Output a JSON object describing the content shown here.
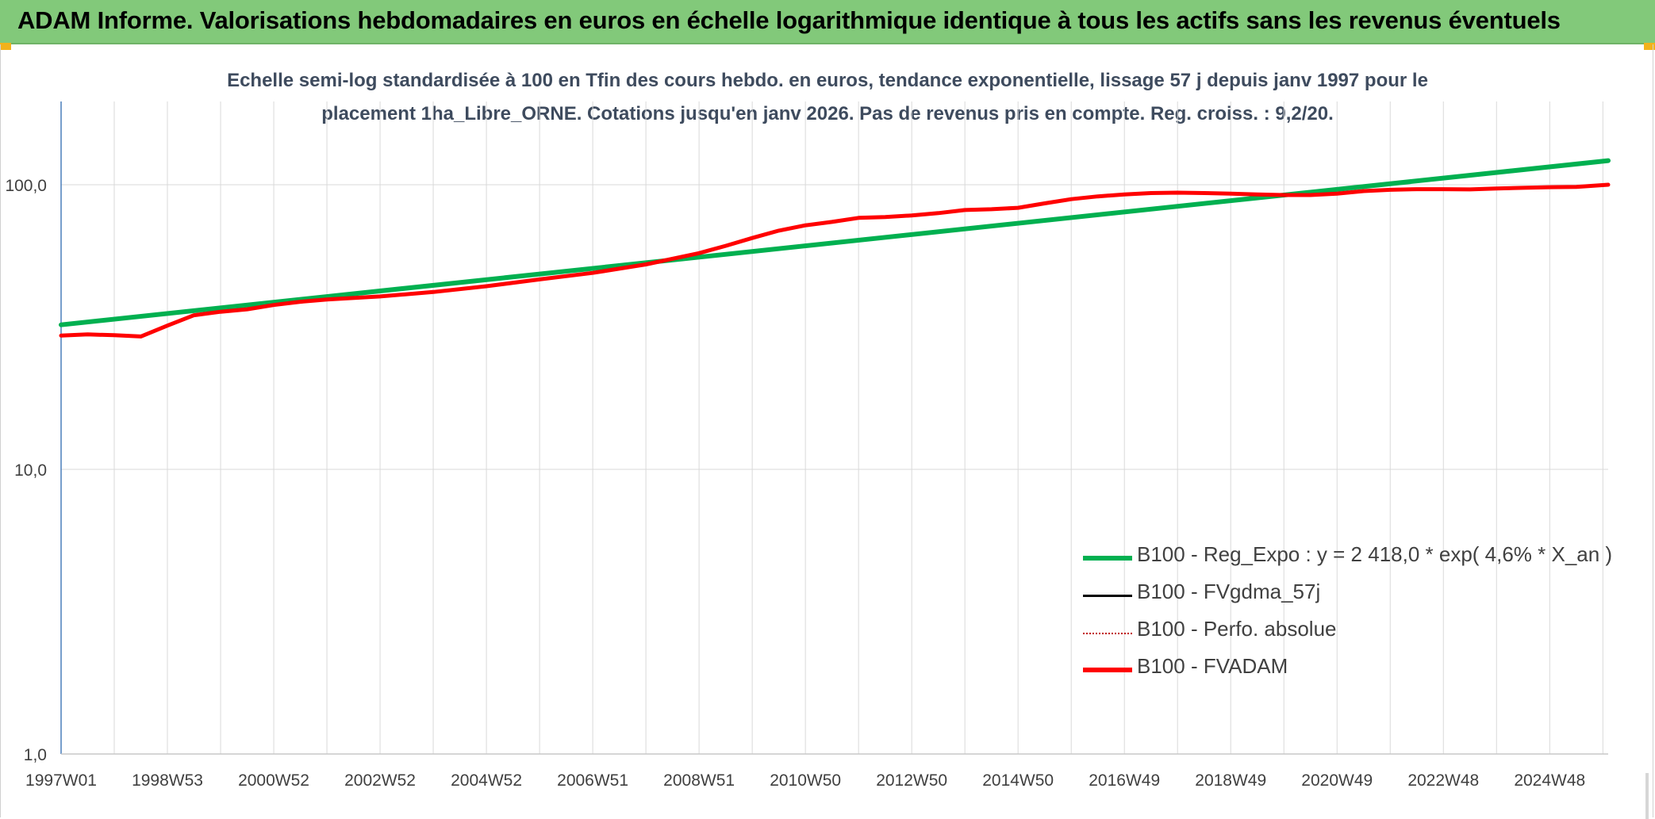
{
  "header": {
    "title": "ADAM Informe. Valorisations hebdomadaires en euros en échelle logarithmique identique à tous les actifs sans les revenus éventuels"
  },
  "chart_data": {
    "type": "line",
    "title_lines": [
      "Echelle semi-log standardisée à 100 en Tfin des cours hebdo. en euros, tendance exponentielle, lissage 57 j depuis janv 1997 pour le",
      "placement 1ha_Libre_ORNE. Cotations jusqu'en janv 2026. Pas de revenus pris en compte. Reg. croiss. : 9,2/20."
    ],
    "xlabel": "",
    "ylabel": "",
    "y_scale": "log",
    "ylim": [
      1,
      100
    ],
    "y_ticks": [
      1,
      10,
      100
    ],
    "y_tick_labels": [
      "1,0",
      "10,0",
      "100,0"
    ],
    "x_range": [
      1997.0,
      2026.1
    ],
    "x_ticks": [
      1997.0,
      1999.0,
      2001.0,
      2003.0,
      2005.0,
      2007.0,
      2009.0,
      2011.0,
      2013.0,
      2015.0,
      2017.0,
      2019.0,
      2021.0,
      2023.0,
      2025.0
    ],
    "x_tick_labels": [
      "1997W01",
      "1998W53",
      "2000W52",
      "2002W52",
      "2004W52",
      "2006W51",
      "2008W51",
      "2010W50",
      "2012W50",
      "2014W50",
      "2016W49",
      "2018W49",
      "2020W49",
      "2022W48",
      "2024W48"
    ],
    "grid": true,
    "legend_position": "bottom-right",
    "colors": {
      "reg_expo": "#00b050",
      "fvgdma": "#000000",
      "perfo": "#c00000",
      "fvadam": "#ff0000",
      "grid": "#d9d9d9",
      "axis": "#4a7ebb",
      "tick_text": "#404040"
    },
    "series": [
      {
        "name": "B100 - Reg_Expo : y = 2 418,0 * exp( 4,6% * X_an )",
        "style": "solid-thick",
        "x": [
          1997.0,
          2026.1
        ],
        "y": [
          32.2,
          121.5
        ]
      },
      {
        "name": "B100 - FVgdma_57j",
        "style": "solid-thin",
        "x": [],
        "y": []
      },
      {
        "name": "B100 - Perfo. absolue",
        "style": "dotted",
        "x": [],
        "y": []
      },
      {
        "name": "B100 - FVADAM",
        "style": "solid-thick",
        "x": [
          1997.0,
          1997.5,
          1998.0,
          1998.5,
          1999.0,
          1999.5,
          2000.0,
          2000.5,
          2001.0,
          2001.5,
          2002.0,
          2003.0,
          2004.0,
          2005.0,
          2006.0,
          2007.0,
          2008.0,
          2009.0,
          2009.5,
          2010.0,
          2010.5,
          2011.0,
          2011.5,
          2012.0,
          2012.5,
          2013.0,
          2013.5,
          2014.0,
          2014.5,
          2015.0,
          2015.5,
          2016.0,
          2016.5,
          2017.0,
          2017.5,
          2018.0,
          2018.5,
          2019.0,
          2019.5,
          2020.0,
          2020.5,
          2021.0,
          2021.5,
          2022.0,
          2022.5,
          2023.0,
          2023.5,
          2024.0,
          2024.5,
          2025.0,
          2025.5,
          2026.1
        ],
        "y": [
          29.5,
          29.8,
          29.6,
          29.3,
          32.0,
          34.8,
          35.8,
          36.5,
          37.8,
          38.8,
          39.5,
          40.5,
          42.0,
          44.0,
          46.5,
          49.0,
          52.5,
          57.5,
          61.0,
          65.0,
          69.0,
          72.0,
          74.0,
          76.5,
          77.0,
          78.0,
          79.5,
          81.5,
          82.0,
          83.0,
          86.0,
          89.0,
          91.0,
          92.5,
          93.5,
          93.8,
          93.5,
          93.0,
          92.5,
          92.0,
          92.0,
          93.0,
          95.0,
          96.0,
          96.5,
          96.5,
          96.3,
          97.0,
          97.5,
          98.0,
          98.3,
          100.0
        ]
      }
    ]
  }
}
